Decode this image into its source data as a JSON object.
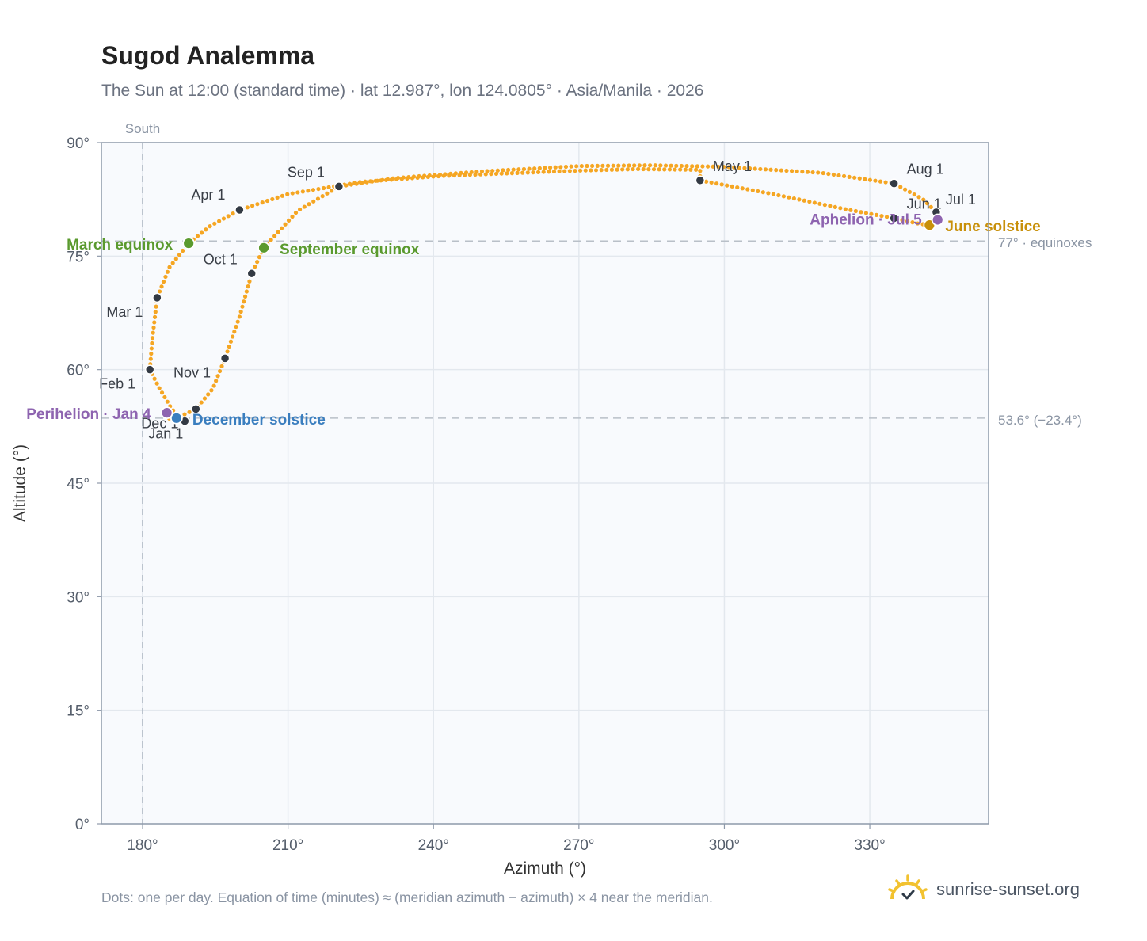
{
  "title": "Sugod Analemma",
  "subtitle": "The Sun at 12:00 (standard time) · lat 12.987°, lon 124.0805° · Asia/Manila · 2026",
  "footnote": "Dots: one per day. Equation of time (minutes) ≈ (meridian azimuth − azimuth) × 4 near the meridian.",
  "brand": {
    "text": "sunrise-sunset.org",
    "icon": "sun-logo-icon"
  },
  "colors": {
    "curve": "#f5a623",
    "month_dot": "#333a44",
    "equinox": "#5a9a2e",
    "june_solstice": "#c8900a",
    "december_solstice": "#3a7ebf",
    "apsis": "#8e64b0",
    "grid": "#e3e8ee",
    "plot_bg": "#f8fafd",
    "frame": "#8e9aaa",
    "ref_line": "#b9c0c8"
  },
  "chart_data": {
    "type": "scatter",
    "title": "Sugod Analemma",
    "xlabel": "Azimuth (°)",
    "ylabel": "Altitude (°)",
    "xlim": [
      171.5,
      354.5
    ],
    "ylim": [
      0,
      90
    ],
    "x_ticks": [
      "180°",
      "210°",
      "240°",
      "270°",
      "300°",
      "330°"
    ],
    "x_tick_values": [
      180,
      210,
      240,
      270,
      300,
      330
    ],
    "y_ticks": [
      "0°",
      "15°",
      "30°",
      "45°",
      "60°",
      "75°",
      "90°"
    ],
    "y_tick_values": [
      0,
      15,
      30,
      45,
      60,
      75,
      90
    ],
    "grid": true,
    "meridian": {
      "azimuth": 180,
      "label": "South"
    },
    "reference_lines": [
      {
        "altitude": 77.0,
        "label": "77° · equinoxes"
      },
      {
        "altitude": 53.6,
        "label": "53.6° (−23.4°)"
      }
    ],
    "daily_path": [
      [
        188.7,
        53.2
      ],
      [
        186.0,
        54.8
      ],
      [
        183.5,
        57.5
      ],
      [
        181.5,
        60.0
      ],
      [
        182.0,
        64.0
      ],
      [
        183.0,
        69.5
      ],
      [
        185.5,
        73.5
      ],
      [
        189.5,
        76.7
      ],
      [
        194.0,
        79.0
      ],
      [
        200.0,
        81.1
      ],
      [
        210.0,
        83.2
      ],
      [
        225.0,
        84.8
      ],
      [
        242.0,
        85.6
      ],
      [
        258.0,
        86.0
      ],
      [
        270.0,
        86.3
      ],
      [
        282.0,
        86.5
      ],
      [
        295.0,
        86.4
      ],
      [
        295.0,
        85.0
      ],
      [
        310.0,
        83.2
      ],
      [
        325.0,
        81.2
      ],
      [
        335.0,
        80.0
      ],
      [
        340.0,
        79.3
      ],
      [
        342.3,
        79.1
      ],
      [
        344.0,
        79.8
      ],
      [
        343.7,
        80.8
      ],
      [
        341.0,
        82.5
      ],
      [
        335.0,
        84.6
      ],
      [
        320.0,
        86.0
      ],
      [
        300.0,
        86.8
      ],
      [
        285.0,
        87.0
      ],
      [
        270.0,
        86.9
      ],
      [
        250.0,
        86.2
      ],
      [
        232.0,
        85.3
      ],
      [
        220.5,
        84.2
      ],
      [
        212.0,
        81.0
      ],
      [
        205.0,
        76.1
      ],
      [
        202.5,
        72.7
      ],
      [
        200.0,
        67.0
      ],
      [
        197.0,
        61.5
      ],
      [
        194.5,
        57.5
      ],
      [
        191.0,
        54.8
      ],
      [
        187.0,
        53.6
      ],
      [
        185.0,
        53.6
      ],
      [
        188.7,
        53.2
      ]
    ],
    "month_markers": [
      {
        "label": "Jan 1",
        "x": 188.7,
        "y": 53.2
      },
      {
        "label": "Feb 1",
        "x": 181.5,
        "y": 60.0
      },
      {
        "label": "Mar 1",
        "x": 183.0,
        "y": 69.5
      },
      {
        "label": "Apr 1",
        "x": 200.0,
        "y": 81.1
      },
      {
        "label": "May 1",
        "x": 295.0,
        "y": 85.0
      },
      {
        "label": "Jun 1",
        "x": 335.0,
        "y": 80.0
      },
      {
        "label": "Jul 1",
        "x": 343.7,
        "y": 80.8
      },
      {
        "label": "Aug 1",
        "x": 335.0,
        "y": 84.6
      },
      {
        "label": "Sep 1",
        "x": 220.5,
        "y": 84.2
      },
      {
        "label": "Oct 1",
        "x": 202.5,
        "y": 72.7
      },
      {
        "label": "Nov 1",
        "x": 197.0,
        "y": 61.5
      },
      {
        "label": "Dec 1",
        "x": 191.0,
        "y": 54.8
      }
    ],
    "events": [
      {
        "label": "March equinox",
        "x": 189.5,
        "y": 76.7,
        "color_key": "equinox"
      },
      {
        "label": "September equinox",
        "x": 205.0,
        "y": 76.1,
        "color_key": "equinox"
      },
      {
        "label": "June solstice",
        "x": 342.3,
        "y": 79.1,
        "color_key": "june_solstice"
      },
      {
        "label": "December solstice",
        "x": 187.0,
        "y": 53.6,
        "color_key": "december_solstice"
      },
      {
        "label": "Perihelion · Jan 4",
        "x": 185.0,
        "y": 54.3,
        "color_key": "apsis"
      },
      {
        "label": "Aphelion · Jul 5",
        "x": 344.0,
        "y": 79.8,
        "color_key": "apsis"
      }
    ]
  }
}
